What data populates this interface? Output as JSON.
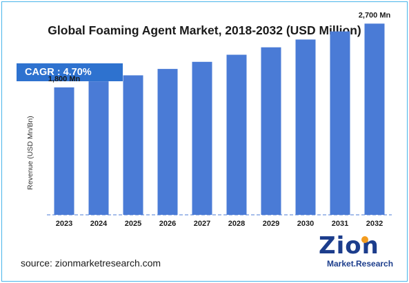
{
  "title": "Global Foaming Agent Market, 2018-2032 (USD Million)",
  "cagr_label": "CAGR : 4.70%",
  "source": "source: zionmarketresearch.com",
  "logo": {
    "word": "Zion",
    "sub": "Market.Research"
  },
  "colors": {
    "bar": "#4a7bd6",
    "cagr_box": "#2e72cf",
    "frame": "#46b4ea",
    "logo": "#1c3d8c",
    "logo_dot": "#f39c1f"
  },
  "chart_data": {
    "type": "bar",
    "title": "Global Foaming Agent Market, 2018-2032 (USD Million)",
    "xlabel": "",
    "ylabel": "Revenue (USD Mn/Bn)",
    "categories": [
      "2023",
      "2024",
      "2025",
      "2026",
      "2027",
      "2028",
      "2029",
      "2030",
      "2031",
      "2032"
    ],
    "values": [
      1800,
      1885,
      1970,
      2060,
      2160,
      2260,
      2365,
      2475,
      2590,
      2700
    ],
    "data_labels": [
      {
        "index": 0,
        "text": "1,800 Mn"
      },
      {
        "index": 9,
        "text": "2,700 Mn"
      }
    ],
    "ylim": [
      0,
      2800
    ],
    "grid": false,
    "legend": "none"
  }
}
